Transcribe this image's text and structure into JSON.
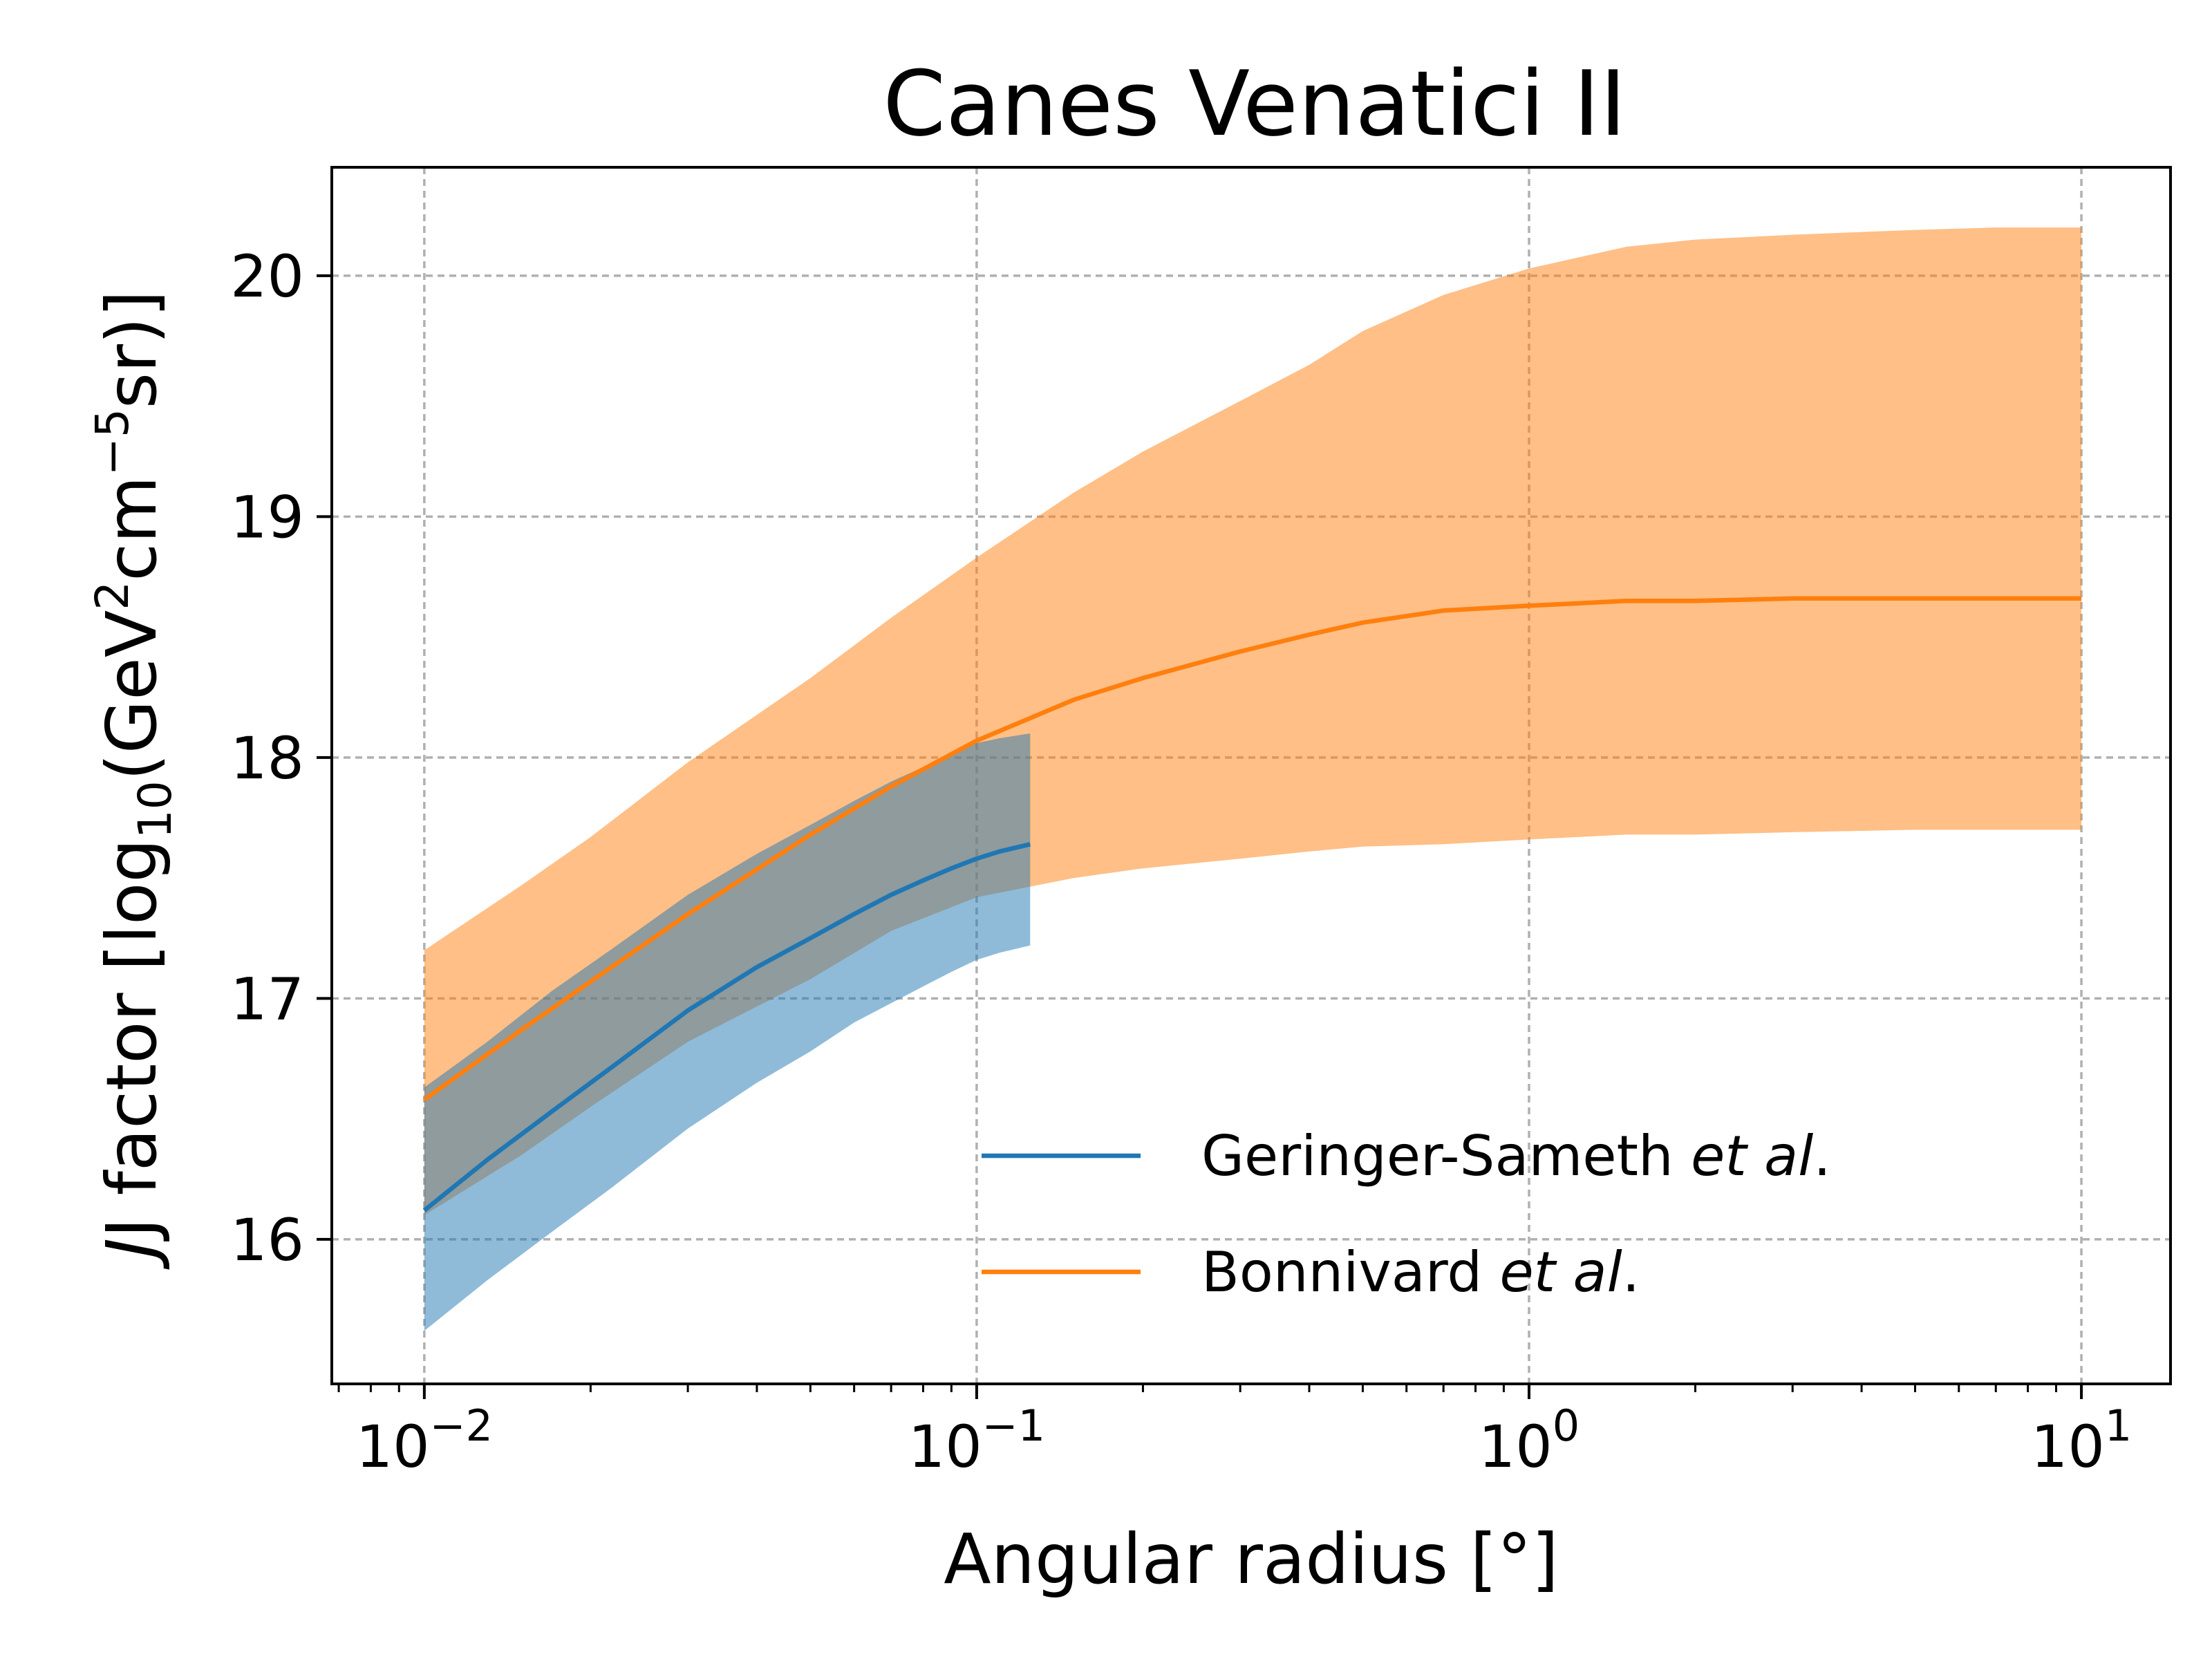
{
  "chart_data": {
    "type": "line",
    "title": "Canes Venatici II",
    "xlabel": "Angular radius [°]",
    "ylabel": {
      "main": "J factor [log",
      "sub": "10",
      "mid": "(GeV",
      "sup1": "2",
      "mid2": "cm",
      "sup2": "−5",
      "end": "sr)]"
    },
    "x_scale": "log",
    "xlim": [
      0.0068,
      14.5
    ],
    "ylim": [
      15.4,
      20.45
    ],
    "grid": true,
    "legend_position": "lower-right",
    "x_ticks": [
      {
        "value": 0.01,
        "base": "10",
        "exp": "−2"
      },
      {
        "value": 0.1,
        "base": "10",
        "exp": "−1"
      },
      {
        "value": 1,
        "base": "10",
        "exp": "0"
      },
      {
        "value": 10,
        "base": "10",
        "exp": "1"
      }
    ],
    "y_ticks": [
      16,
      17,
      18,
      19,
      20
    ],
    "series": [
      {
        "name": "Geringer-Sameth",
        "name_italic": "et al",
        "name_suffix": ".",
        "color": "#1f77b4",
        "band_color": "#1f77b4",
        "band_opacity": 0.5,
        "x": [
          0.01,
          0.013,
          0.017,
          0.022,
          0.03,
          0.04,
          0.05,
          0.06,
          0.07,
          0.08,
          0.09,
          0.1,
          0.11,
          0.125
        ],
        "y": [
          16.12,
          16.33,
          16.53,
          16.72,
          16.95,
          17.13,
          17.25,
          17.35,
          17.43,
          17.49,
          17.54,
          17.58,
          17.61,
          17.64
        ],
        "lower": [
          15.62,
          15.83,
          16.03,
          16.22,
          16.46,
          16.65,
          16.78,
          16.9,
          16.98,
          17.05,
          17.11,
          17.16,
          17.19,
          17.22
        ],
        "upper": [
          16.63,
          16.82,
          17.03,
          17.21,
          17.43,
          17.6,
          17.72,
          17.82,
          17.9,
          17.96,
          18.02,
          18.06,
          18.08,
          18.1
        ]
      },
      {
        "name": "Bonnivard",
        "name_italic": "et al",
        "name_suffix": ".",
        "color": "#ff7f0e",
        "band_color": "#ff7f0e",
        "band_opacity": 0.5,
        "x": [
          0.01,
          0.015,
          0.02,
          0.03,
          0.05,
          0.07,
          0.1,
          0.15,
          0.2,
          0.3,
          0.4,
          0.5,
          0.7,
          1,
          1.5,
          2,
          3,
          5,
          7,
          10
        ],
        "y": [
          16.58,
          16.87,
          17.07,
          17.35,
          17.68,
          17.88,
          18.07,
          18.24,
          18.33,
          18.44,
          18.51,
          18.56,
          18.61,
          18.63,
          18.65,
          18.65,
          18.66,
          18.66,
          18.66,
          18.66
        ],
        "lower": [
          16.1,
          16.35,
          16.55,
          16.82,
          17.08,
          17.28,
          17.42,
          17.5,
          17.54,
          17.58,
          17.61,
          17.63,
          17.64,
          17.66,
          17.68,
          17.68,
          17.69,
          17.7,
          17.7,
          17.7
        ],
        "upper": [
          17.2,
          17.47,
          17.67,
          17.98,
          18.33,
          18.58,
          18.83,
          19.1,
          19.27,
          19.48,
          19.63,
          19.77,
          19.92,
          20.03,
          20.12,
          20.15,
          20.17,
          20.19,
          20.2,
          20.2
        ]
      }
    ]
  }
}
